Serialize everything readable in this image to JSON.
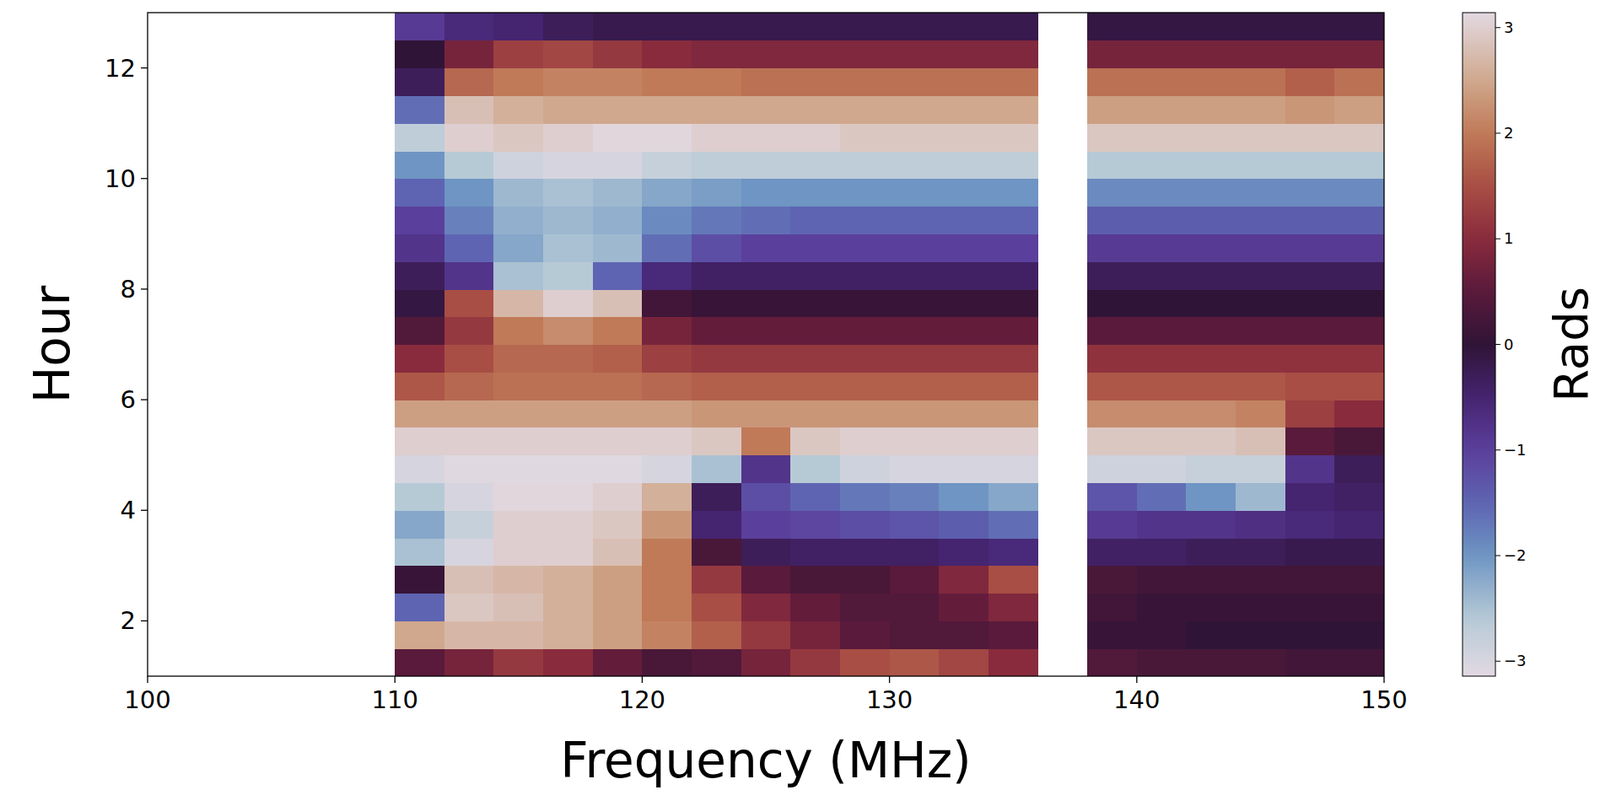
{
  "chart_data": {
    "type": "heatmap",
    "xlabel": "Frequency (MHz)",
    "ylabel": "Hour",
    "xlim": [
      100,
      150
    ],
    "ylim": [
      1,
      13
    ],
    "xticks": [
      100,
      110,
      120,
      130,
      140,
      150
    ],
    "yticks": [
      2,
      4,
      6,
      8,
      10,
      12
    ],
    "x_edges": [
      110,
      112,
      114,
      116,
      118,
      120,
      122,
      124,
      126,
      128,
      130,
      132,
      134,
      136,
      138,
      140,
      142,
      144,
      146,
      148,
      150
    ],
    "y_edges": [
      1,
      1.5,
      2,
      2.5,
      3,
      3.5,
      4,
      4.5,
      5,
      5.5,
      6,
      6.5,
      7,
      7.5,
      8,
      8.5,
      9,
      9.5,
      10,
      10.5,
      11,
      11.5,
      12,
      12.5,
      13
    ],
    "cells": [
      [
        0.5,
        0.8,
        1.2,
        1.0,
        0.6,
        0.3,
        0.4,
        0.8,
        1.2,
        1.5,
        1.6,
        1.4,
        1.0,
        null,
        0.4,
        0.3,
        0.3,
        0.3,
        0.2,
        0.2
      ],
      [
        2.5,
        2.7,
        2.7,
        2.6,
        2.4,
        2.1,
        1.7,
        1.2,
        0.8,
        0.5,
        0.4,
        0.4,
        0.5,
        null,
        0.1,
        0.1,
        0.0,
        0.0,
        0.0,
        0.0
      ],
      [
        -1.5,
        2.9,
        2.8,
        2.6,
        2.4,
        2.0,
        1.5,
        0.9,
        0.6,
        0.4,
        0.4,
        0.6,
        0.9,
        null,
        0.2,
        0.1,
        0.1,
        0.1,
        0.1,
        0.1
      ],
      [
        0.1,
        2.8,
        2.7,
        2.6,
        2.4,
        2.0,
        1.2,
        0.5,
        0.3,
        0.3,
        0.5,
        0.9,
        1.5,
        null,
        0.3,
        0.2,
        0.2,
        0.2,
        0.2,
        0.2
      ],
      [
        -2.5,
        -3.0,
        3.0,
        3.0,
        2.8,
        2.0,
        0.3,
        -0.3,
        -0.4,
        -0.4,
        -0.4,
        -0.5,
        -0.6,
        null,
        -0.4,
        -0.4,
        -0.3,
        -0.3,
        -0.2,
        -0.2
      ],
      [
        -2.2,
        -2.8,
        3.0,
        3.0,
        2.9,
        2.3,
        -0.5,
        -1.0,
        -1.1,
        -1.2,
        -1.3,
        -1.4,
        -1.6,
        null,
        -0.9,
        -0.8,
        -0.8,
        -0.7,
        -0.6,
        -0.5
      ],
      [
        -2.6,
        -3.0,
        3.1,
        3.1,
        3.0,
        2.6,
        -0.3,
        -1.2,
        -1.5,
        -1.7,
        -1.8,
        -2.0,
        -2.2,
        null,
        -1.3,
        -1.6,
        -2.0,
        -2.4,
        -0.5,
        -0.4
      ],
      [
        -3.0,
        -3.1,
        -3.1,
        -3.1,
        -3.1,
        -3.0,
        -2.5,
        -0.8,
        -2.6,
        -2.9,
        -3.0,
        -3.0,
        -3.0,
        null,
        -2.9,
        -2.9,
        -2.8,
        -2.8,
        -0.8,
        -0.3
      ],
      [
        3.0,
        3.0,
        3.0,
        3.0,
        3.0,
        3.0,
        2.9,
        2.0,
        2.9,
        3.0,
        3.0,
        3.0,
        3.0,
        null,
        2.9,
        2.9,
        2.9,
        2.8,
        0.5,
        0.3
      ],
      [
        2.4,
        2.4,
        2.4,
        2.4,
        2.4,
        2.4,
        2.3,
        2.3,
        2.3,
        2.3,
        2.3,
        2.3,
        2.3,
        null,
        2.2,
        2.2,
        2.2,
        2.1,
        1.3,
        1.0
      ],
      [
        1.6,
        1.8,
        1.9,
        1.9,
        1.9,
        1.8,
        1.7,
        1.7,
        1.7,
        1.7,
        1.7,
        1.7,
        1.7,
        null,
        1.6,
        1.6,
        1.6,
        1.6,
        1.5,
        1.5
      ],
      [
        1.0,
        1.5,
        1.8,
        1.8,
        1.7,
        1.3,
        1.2,
        1.2,
        1.2,
        1.2,
        1.2,
        1.2,
        1.2,
        null,
        1.1,
        1.1,
        1.1,
        1.1,
        1.1,
        1.1
      ],
      [
        0.4,
        1.2,
        2.0,
        2.2,
        2.0,
        0.8,
        0.6,
        0.6,
        0.6,
        0.6,
        0.6,
        0.6,
        0.6,
        null,
        0.5,
        0.5,
        0.5,
        0.5,
        0.5,
        0.5
      ],
      [
        -0.1,
        1.5,
        2.7,
        3.0,
        2.8,
        0.2,
        0.1,
        0.1,
        0.1,
        0.1,
        0.1,
        0.1,
        0.1,
        null,
        0.0,
        0.0,
        0.0,
        0.0,
        0.0,
        0.0
      ],
      [
        -0.3,
        -0.8,
        -2.5,
        -2.6,
        -1.5,
        -0.6,
        -0.4,
        -0.4,
        -0.4,
        -0.4,
        -0.4,
        -0.4,
        -0.4,
        null,
        -0.3,
        -0.3,
        -0.3,
        -0.3,
        -0.3,
        -0.3
      ],
      [
        -0.8,
        -1.5,
        -2.2,
        -2.5,
        -2.4,
        -1.6,
        -1.2,
        -1.0,
        -1.0,
        -1.0,
        -1.0,
        -1.0,
        -1.0,
        null,
        -0.9,
        -0.9,
        -0.9,
        -0.9,
        -0.9,
        -0.9
      ],
      [
        -1.0,
        -1.8,
        -2.3,
        -2.4,
        -2.3,
        -1.9,
        -1.7,
        -1.6,
        -1.5,
        -1.5,
        -1.5,
        -1.5,
        -1.5,
        null,
        -1.4,
        -1.4,
        -1.4,
        -1.4,
        -1.4,
        -1.4
      ],
      [
        -1.5,
        -2.0,
        -2.4,
        -2.5,
        -2.4,
        -2.2,
        -2.1,
        -2.0,
        -2.0,
        -2.0,
        -2.0,
        -2.0,
        -2.0,
        null,
        -1.9,
        -1.9,
        -1.9,
        -1.9,
        -1.9,
        -1.9
      ],
      [
        -2.0,
        -2.6,
        -2.9,
        -3.0,
        -3.0,
        -2.8,
        -2.7,
        -2.7,
        -2.7,
        -2.7,
        -2.7,
        -2.7,
        -2.7,
        null,
        -2.6,
        -2.6,
        -2.6,
        -2.6,
        -2.6,
        -2.6
      ],
      [
        -2.7,
        3.0,
        2.9,
        3.0,
        3.1,
        3.1,
        3.0,
        3.0,
        3.0,
        2.9,
        2.9,
        2.9,
        2.9,
        null,
        2.9,
        2.9,
        2.9,
        2.9,
        2.9,
        2.9
      ],
      [
        -1.6,
        2.8,
        2.6,
        2.5,
        2.5,
        2.5,
        2.5,
        2.5,
        2.5,
        2.5,
        2.5,
        2.5,
        2.5,
        null,
        2.4,
        2.4,
        2.4,
        2.4,
        2.3,
        2.4
      ],
      [
        -0.3,
        1.8,
        2.0,
        2.1,
        2.1,
        2.0,
        2.0,
        1.9,
        1.9,
        1.9,
        1.9,
        1.9,
        1.9,
        null,
        1.9,
        1.9,
        1.9,
        1.9,
        1.7,
        1.9
      ],
      [
        0.0,
        0.8,
        1.3,
        1.4,
        1.2,
        1.0,
        0.9,
        0.9,
        0.9,
        0.9,
        0.9,
        0.9,
        0.9,
        null,
        0.8,
        0.8,
        0.8,
        0.8,
        0.8,
        0.8
      ],
      [
        -0.9,
        -0.6,
        -0.5,
        -0.3,
        -0.2,
        -0.2,
        -0.2,
        -0.2,
        -0.2,
        -0.2,
        -0.2,
        -0.2,
        -0.2,
        null,
        -0.1,
        -0.1,
        -0.1,
        -0.1,
        -0.1,
        -0.1
      ]
    ],
    "colorbar_label": "Rads",
    "colorbar_range": [
      -3.1416,
      3.1416
    ],
    "colorbar_ticks": [
      {
        "value": -3,
        "label": "−3"
      },
      {
        "value": -2,
        "label": "−2"
      },
      {
        "value": -1,
        "label": "−1"
      },
      0,
      1,
      2,
      3
    ]
  }
}
